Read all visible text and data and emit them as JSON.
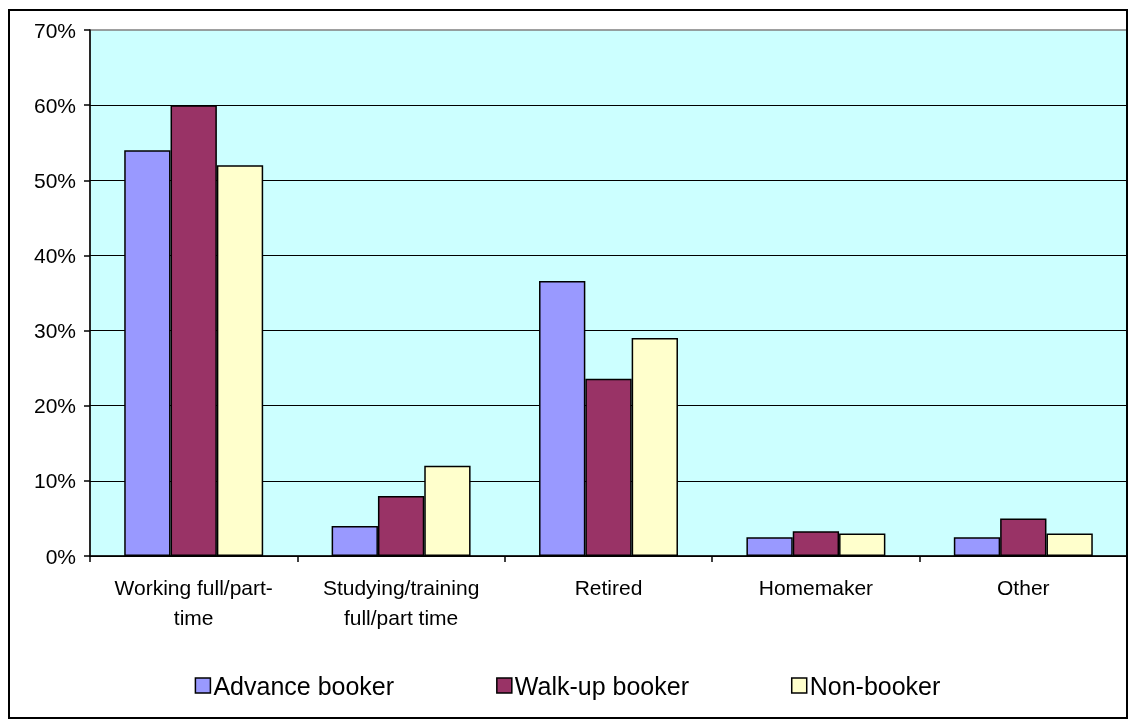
{
  "chart_data": {
    "type": "bar",
    "categories": [
      "Working full/part-time",
      "Studying/training full/part time",
      "Retired",
      "Homemaker",
      "Other"
    ],
    "series": [
      {
        "name": "Advance booker",
        "color": "#9999ff",
        "values": [
          54,
          4,
          36.6,
          2.5,
          2.5
        ]
      },
      {
        "name": "Walk-up booker",
        "color": "#993366",
        "values": [
          60,
          8,
          23.6,
          3.3,
          5
        ]
      },
      {
        "name": "Non-booker",
        "color": "#ffffcc",
        "values": [
          52,
          12,
          29,
          3,
          3
        ]
      }
    ],
    "ylim": [
      0,
      70
    ],
    "yticks": [
      {
        "value": 0,
        "label": "0%"
      },
      {
        "value": 10,
        "label": "10%"
      },
      {
        "value": 20,
        "label": "20%"
      },
      {
        "value": 30,
        "label": "30%"
      },
      {
        "value": 40,
        "label": "40%"
      },
      {
        "value": 50,
        "label": "50%"
      },
      {
        "value": 60,
        "label": "60%"
      },
      {
        "value": 70,
        "label": "70%"
      }
    ],
    "grid": "y",
    "legend": "bottom"
  }
}
